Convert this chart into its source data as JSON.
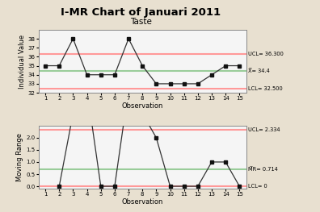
{
  "title": "I-MR Chart of Januari 2011",
  "subtitle": "Taste",
  "observations": [
    1,
    2,
    3,
    4,
    5,
    6,
    7,
    8,
    9,
    10,
    11,
    12,
    13,
    14,
    15
  ],
  "individual_values": [
    35,
    35,
    38,
    34,
    34,
    34,
    38,
    35,
    33,
    33,
    33,
    33,
    34,
    35,
    35
  ],
  "ucl_i": 36.3,
  "cl_i": 34.4,
  "lcl_i": 32.5,
  "ucl_mr": 2.334,
  "cl_mr": 0.714,
  "lcl_mr": 0,
  "ylim_i": [
    32,
    39
  ],
  "ylim_mr": [
    -0.1,
    2.5
  ],
  "yticks_i": [
    32,
    33,
    34,
    35,
    36,
    37,
    38
  ],
  "yticks_mr": [
    0.0,
    0.5,
    1.0,
    1.5,
    2.0
  ],
  "ylabel_i": "Individual Value",
  "ylabel_mr": "Moving Range",
  "xlabel": "Observation",
  "bg_color": "#e8e0d0",
  "plot_bg": "#f5f5f5",
  "ucl_color": "#ff9999",
  "cl_color": "#99cc99",
  "lcl_color": "#ff9999",
  "line_color": "#333333",
  "marker_color": "#111111",
  "label_fontsize": 6.0,
  "tick_fontsize": 5.0,
  "title_fontsize": 9.5,
  "subtitle_fontsize": 7.5,
  "annot_fontsize": 4.8
}
